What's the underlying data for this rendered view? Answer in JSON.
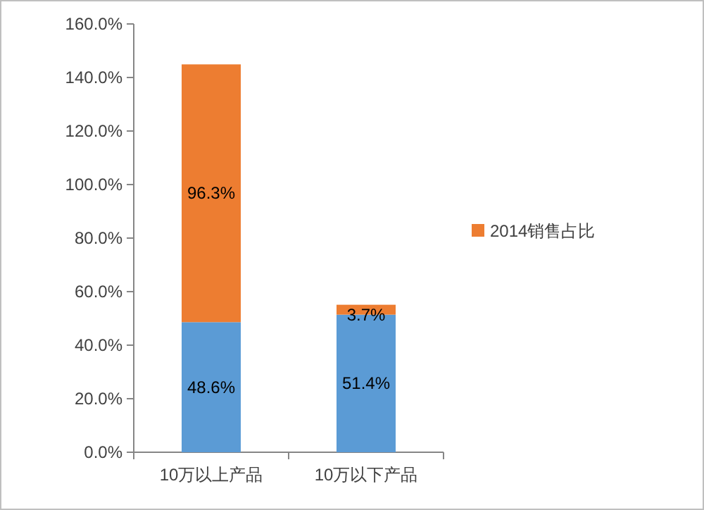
{
  "chart_data": {
    "type": "bar",
    "stacked": true,
    "categories": [
      "10万以上产品",
      "10万以下产品"
    ],
    "series": [
      {
        "color": "#5b9bd5",
        "values": [
          48.6,
          51.4
        ],
        "value_labels": [
          "48.6%",
          "51.4%"
        ]
      },
      {
        "name": "2014销售占比",
        "color": "#ed7d31",
        "values": [
          96.3,
          3.7
        ],
        "value_labels": [
          "96.3%",
          "3.7%"
        ]
      }
    ],
    "ylim": [
      0,
      160
    ],
    "yticks": [
      {
        "value": 0,
        "label": "0.0%"
      },
      {
        "value": 20,
        "label": "20.0%"
      },
      {
        "value": 40,
        "label": "40.0%"
      },
      {
        "value": 60,
        "label": "60.0%"
      },
      {
        "value": 80,
        "label": "80.0%"
      },
      {
        "value": 100,
        "label": "100.0%"
      },
      {
        "value": 120,
        "label": "120.0%"
      },
      {
        "value": 140,
        "label": "140.0%"
      },
      {
        "value": 160,
        "label": "160.0%"
      }
    ],
    "grid": false,
    "legend": "right"
  }
}
